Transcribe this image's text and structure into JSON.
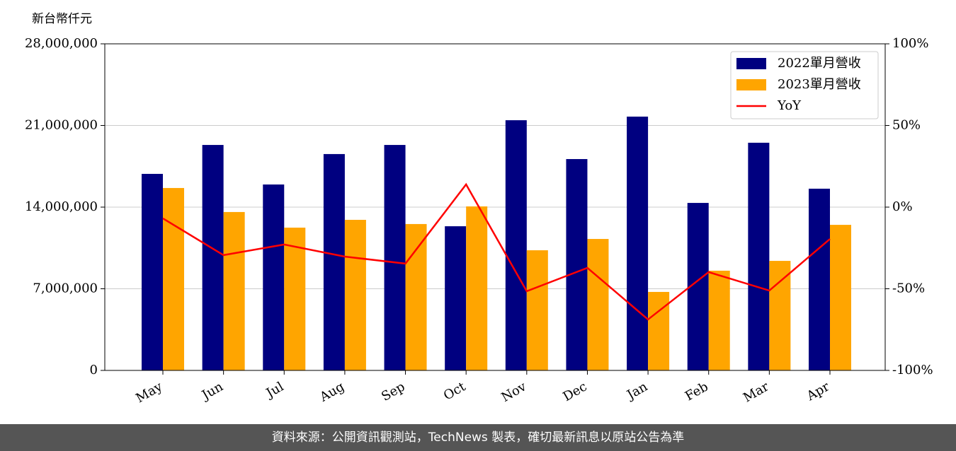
{
  "chart_data": {
    "type": "bar",
    "y_label": "新台幣仟元",
    "categories": [
      "May",
      "Jun",
      "Jul",
      "Aug",
      "Sep",
      "Oct",
      "Nov",
      "Dec",
      "Jan",
      "Feb",
      "Mar",
      "Apr"
    ],
    "series": [
      {
        "name": "2022單月營收",
        "color": "#000080",
        "values": [
          16850000,
          19330000,
          15940000,
          18550000,
          19330000,
          12360000,
          21450000,
          18120000,
          21760000,
          14360000,
          19520000,
          15580000
        ]
      },
      {
        "name": "2023單月營收",
        "color": "#ffa500",
        "values": [
          15640000,
          13580000,
          12240000,
          12910000,
          12550000,
          14060000,
          10300000,
          11270000,
          6730000,
          8550000,
          9390000,
          12480000
        ]
      },
      {
        "name": "YoY",
        "color": "#ff0000",
        "type": "line",
        "axis": "y2",
        "values": [
          -6.9,
          -29.4,
          -22.9,
          -30.3,
          -34.6,
          13.9,
          -51.5,
          -37.2,
          -68.8,
          -39.8,
          -51.1,
          -19.5
        ]
      }
    ],
    "ylim": [
      0,
      28000000
    ],
    "yticks": [
      0,
      {
        "value": 7000000,
        "label": "7,000,000"
      },
      {
        "value": 14000000,
        "label": "14,000,000"
      },
      {
        "value": 21000000,
        "label": "21,000,000"
      },
      {
        "value": 28000000,
        "label": "28,000,000"
      }
    ],
    "y2lim": [
      -100,
      100
    ],
    "y2ticks": [
      {
        "value": -100,
        "label": "-100%"
      },
      {
        "value": -50,
        "label": "-50%"
      },
      {
        "value": 0,
        "label": "0%"
      },
      {
        "value": 50,
        "label": "50%"
      },
      {
        "value": 100,
        "label": "100%"
      }
    ],
    "grid": true,
    "legend": "upper right"
  },
  "footer": "資料來源：公開資訊觀測站，TechNews 製表，確切最新訊息以原站公告為準"
}
